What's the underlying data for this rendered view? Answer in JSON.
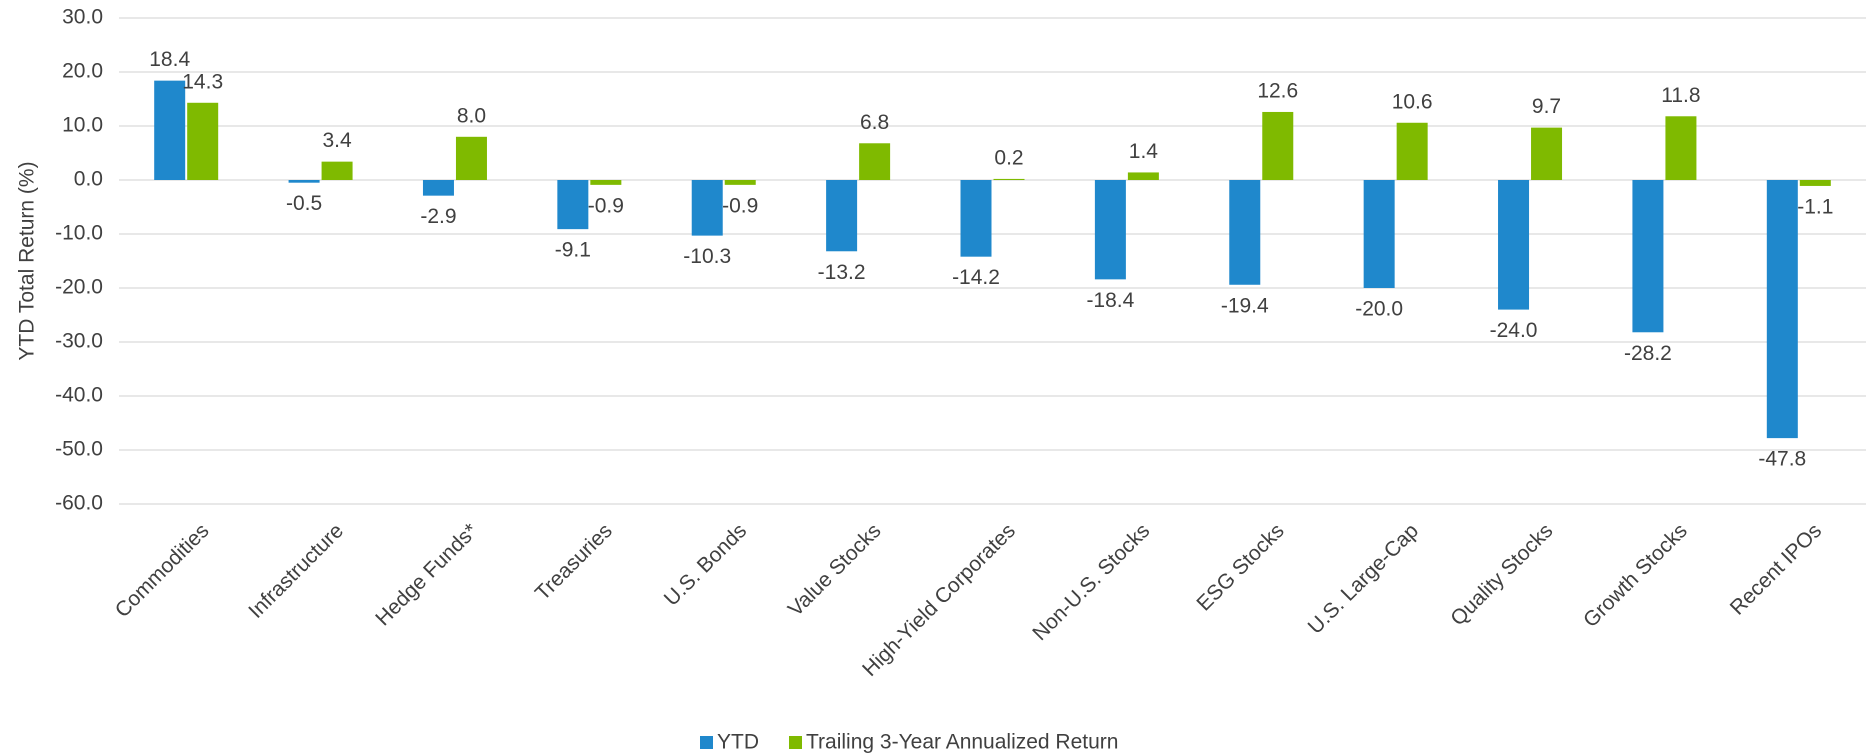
{
  "chart_data": {
    "type": "bar",
    "y_label": "YTD Total Return (%)",
    "categories": [
      "Commodities",
      "Infrastructure",
      "Hedge Funds*",
      "Treasuries",
      "U.S. Bonds",
      "Value Stocks",
      "High-Yield Corporates",
      "Non-U.S. Stocks",
      "ESG Stocks",
      "U.S. Large-Cap",
      "Quality Stocks",
      "Growth Stocks",
      "Recent IPOs"
    ],
    "series": [
      {
        "name": "YTD",
        "color": "#1f88cc",
        "values": [
          18.4,
          -0.5,
          -2.9,
          -9.1,
          -10.3,
          -13.2,
          -14.2,
          -18.4,
          -19.4,
          -20.0,
          -24.0,
          -28.2,
          -47.8
        ],
        "value_labels": [
          "18.4",
          "-0.5",
          "-2.9",
          "-9.1",
          "-10.3",
          "-13.2",
          "-14.2",
          "-18.4",
          "-19.4",
          "-20.0",
          "-24.0",
          "-28.2",
          "-47.8"
        ]
      },
      {
        "name": "Trailing 3-Year Annualized Return",
        "color": "#7fba00",
        "values": [
          14.3,
          3.4,
          8.0,
          -0.9,
          -0.9,
          6.8,
          0.2,
          1.4,
          12.6,
          10.6,
          9.7,
          11.8,
          -1.1
        ],
        "value_labels": [
          "14.3",
          "3.4",
          "8.0",
          "-0.9",
          "-0.9",
          "6.8",
          "0.2",
          "1.4",
          "12.6",
          "10.6",
          "9.7",
          "11.8",
          "-1.1"
        ]
      }
    ],
    "ylim": [
      -60,
      30
    ],
    "yticks": [
      {
        "value": -60,
        "label": "-60.0"
      },
      {
        "value": -50,
        "label": "-50.0"
      },
      {
        "value": -40,
        "label": "-40.0"
      },
      {
        "value": -30,
        "label": "-30.0"
      },
      {
        "value": -20,
        "label": "-20.0"
      },
      {
        "value": -10,
        "label": "-10.0"
      },
      {
        "value": 0,
        "label": "0.0"
      },
      {
        "value": 10,
        "label": "10.0"
      },
      {
        "value": 20,
        "label": "20.0"
      },
      {
        "value": 30,
        "label": "30.0"
      }
    ],
    "grid": true,
    "legend": "bottom"
  }
}
